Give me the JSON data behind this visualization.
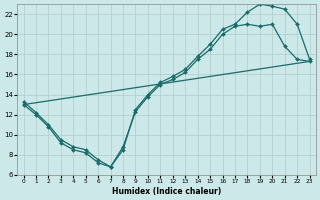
{
  "xlabel": "Humidex (Indice chaleur)",
  "bg_color": "#cde8e8",
  "line_color": "#1a6b6b",
  "grid_color": "#aecccc",
  "xlim": [
    -0.5,
    23.5
  ],
  "ylim": [
    6,
    23
  ],
  "xticks": [
    0,
    1,
    2,
    3,
    4,
    5,
    6,
    7,
    8,
    9,
    10,
    11,
    12,
    13,
    14,
    15,
    16,
    17,
    18,
    19,
    20,
    21,
    22,
    23
  ],
  "yticks": [
    6,
    8,
    10,
    12,
    14,
    16,
    18,
    20,
    22
  ],
  "series1_x": [
    0,
    1,
    2,
    3,
    4,
    5,
    6,
    7,
    8,
    9,
    10,
    11,
    12,
    13,
    14,
    15,
    16,
    17,
    18,
    19,
    20,
    21,
    22,
    23
  ],
  "series1_y": [
    13.3,
    12.2,
    11.0,
    9.5,
    8.8,
    8.5,
    7.5,
    6.8,
    8.5,
    12.5,
    14.0,
    15.2,
    15.8,
    16.5,
    17.8,
    19.0,
    20.5,
    21.0,
    22.2,
    23.0,
    22.8,
    22.5,
    21.0,
    17.5
  ],
  "series2_x": [
    0,
    1,
    2,
    3,
    4,
    5,
    6,
    7,
    8,
    9,
    10,
    11,
    12,
    13,
    14,
    15,
    16,
    17,
    18,
    19,
    20,
    21,
    22,
    23
  ],
  "series2_y": [
    13.0,
    12.0,
    10.8,
    9.2,
    8.5,
    8.2,
    7.2,
    6.8,
    8.8,
    12.3,
    13.8,
    15.0,
    15.5,
    16.2,
    17.5,
    18.5,
    20.0,
    20.8,
    21.0,
    20.8,
    21.0,
    18.8,
    17.5,
    17.3
  ],
  "series3_x": [
    0,
    23
  ],
  "series3_y": [
    13.0,
    17.3
  ],
  "marker": "D",
  "markersize": 2.0,
  "linewidth": 0.9
}
